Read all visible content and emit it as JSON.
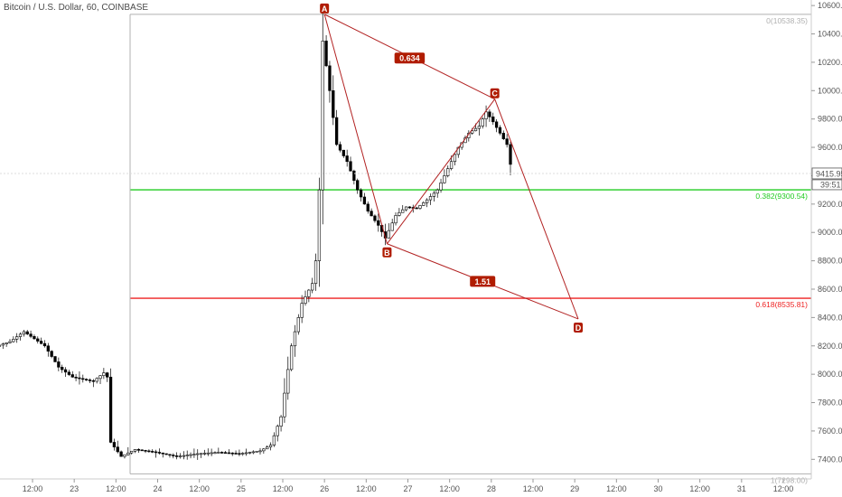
{
  "chart_data": {
    "type": "candlestick",
    "title": "Bitcoin / U.S. Dollar, 60, COINBASE",
    "ylim": [
      7300,
      10620
    ],
    "y_ticks": [
      10600,
      10400,
      10200,
      10000,
      9800,
      9600,
      9400,
      9200,
      9000,
      8800,
      8600,
      8400,
      8200,
      8000,
      7800,
      7600,
      7400
    ],
    "x_ticks": [
      "12:00",
      "23",
      "12:00",
      "24",
      "12:00",
      "25",
      "12:00",
      "26",
      "12:00",
      "27",
      "12:00",
      "28",
      "12:00",
      "29",
      "12:00",
      "30",
      "12:00",
      "31",
      "12:00"
    ],
    "x_tick_positions_hours": [
      12,
      24,
      36,
      48,
      60,
      72,
      84,
      96,
      108,
      120,
      132,
      144,
      156,
      168,
      180,
      192,
      204,
      216,
      228
    ],
    "price_now": "9415.95",
    "countdown": "39:51",
    "fib_levels": [
      {
        "label": "0(10538.35)",
        "value": 10538.35,
        "color": "#b0b0b0"
      },
      {
        "label": "0.382(9300.54)",
        "value": 9300.54,
        "color": "#22cc22"
      },
      {
        "label": "0.618(8535.81)",
        "value": 8535.81,
        "color": "#ee2222"
      },
      {
        "label": "1(7298.00)",
        "value": 7298.0,
        "color": "#b0b0b0"
      }
    ],
    "pattern_points": [
      {
        "label": "A",
        "t": 96,
        "value": 10538
      },
      {
        "label": "B",
        "t": 114,
        "value": 8920
      },
      {
        "label": "C",
        "t": 145,
        "value": 9940
      },
      {
        "label": "D",
        "t": 169,
        "value": 8390
      }
    ],
    "ratios": [
      {
        "label": "0.634",
        "t": 120.5,
        "value": 10230
      },
      {
        "label": "1.51",
        "t": 141.5,
        "value": 8655
      }
    ],
    "key_prices": [
      [
        0,
        8180
      ],
      [
        6,
        8230
      ],
      [
        10,
        8300
      ],
      [
        16,
        8200
      ],
      [
        20,
        8050
      ],
      [
        24,
        7980
      ],
      [
        30,
        7950
      ],
      [
        33,
        8010
      ],
      [
        34,
        7980
      ],
      [
        35,
        7520
      ],
      [
        38,
        7420
      ],
      [
        42,
        7470
      ],
      [
        48,
        7450
      ],
      [
        54,
        7420
      ],
      [
        60,
        7440
      ],
      [
        66,
        7450
      ],
      [
        72,
        7440
      ],
      [
        78,
        7460
      ],
      [
        81,
        7500
      ],
      [
        84,
        7700
      ],
      [
        87,
        8200
      ],
      [
        90,
        8500
      ],
      [
        93,
        8640
      ],
      [
        94,
        8800
      ],
      [
        95,
        9300
      ],
      [
        96,
        10350
      ],
      [
        98,
        10000
      ],
      [
        100,
        9620
      ],
      [
        103,
        9500
      ],
      [
        106,
        9300
      ],
      [
        109,
        9150
      ],
      [
        112,
        9050
      ],
      [
        114,
        8960
      ],
      [
        117,
        9120
      ],
      [
        120,
        9180
      ],
      [
        123,
        9170
      ],
      [
        126,
        9230
      ],
      [
        129,
        9300
      ],
      [
        132,
        9450
      ],
      [
        135,
        9600
      ],
      [
        138,
        9700
      ],
      [
        141,
        9750
      ],
      [
        143,
        9850
      ],
      [
        145,
        9780
      ],
      [
        147,
        9700
      ],
      [
        149,
        9620
      ],
      [
        150,
        9480
      ]
    ]
  }
}
